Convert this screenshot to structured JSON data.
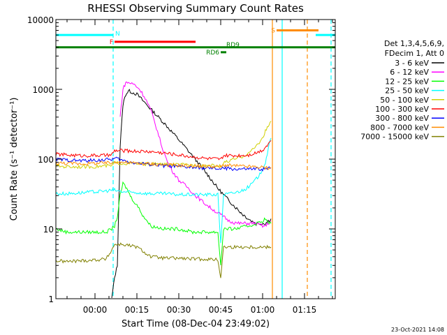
{
  "chart_data": {
    "type": "line",
    "title": "RHESSI Observing Summary Count Rates",
    "xlabel": "Start Time (08-Dec-04 23:49:02)",
    "ylabel": "Count Rate (s⁻¹ detector⁻¹)",
    "yscale": "log",
    "xlim_min": [
      -14,
      86
    ],
    "ylim": [
      1,
      10000
    ],
    "x_ticks": [
      {
        "v": 0,
        "label": "00:00"
      },
      {
        "v": 15,
        "label": "00:15"
      },
      {
        "v": 30,
        "label": "00:30"
      },
      {
        "v": 45,
        "label": "00:45"
      },
      {
        "v": 60,
        "label": "01:00"
      },
      {
        "v": 75,
        "label": "01:15"
      }
    ],
    "y_ticks": [
      {
        "v": 1,
        "label": "1"
      },
      {
        "v": 10,
        "label": "10"
      },
      {
        "v": 100,
        "label": "100"
      },
      {
        "v": 1000,
        "label": "1000"
      },
      {
        "v": 10000,
        "label": "10000"
      }
    ],
    "legend_header": [
      "Det 1,3,4,5,6,9,",
      "FDecim 1, Att 0"
    ],
    "legend_position": "right",
    "series": [
      {
        "name": "3 - 6 keV",
        "color": "#000000",
        "x": [
          -14,
          -10,
          -5,
          0,
          4,
          6,
          7,
          8,
          9,
          10,
          11,
          12,
          13,
          15,
          17,
          20,
          25,
          30,
          35,
          40,
          44,
          47,
          50,
          53,
          56,
          58,
          60,
          61,
          62,
          63
        ],
        "y": [
          null,
          null,
          null,
          null,
          null,
          1,
          2,
          3,
          150,
          600,
          850,
          950,
          920,
          850,
          700,
          520,
          320,
          190,
          110,
          62,
          38,
          28,
          21,
          16,
          13,
          12,
          12,
          12,
          13,
          14
        ]
      },
      {
        "name": "6 - 12 keV",
        "color": "#ff00ff",
        "x": [
          -14,
          -10,
          -5,
          0,
          4,
          6,
          7,
          8,
          9,
          10,
          11,
          12,
          14,
          16,
          18,
          20,
          22,
          24,
          26,
          28,
          30,
          33,
          36,
          40,
          43,
          45,
          48,
          51,
          54,
          57,
          60,
          61,
          62,
          63
        ],
        "y": [
          null,
          null,
          null,
          null,
          null,
          null,
          null,
          null,
          400,
          1000,
          1250,
          1250,
          1180,
          1000,
          750,
          500,
          280,
          150,
          90,
          65,
          50,
          40,
          30,
          22,
          18,
          16,
          13,
          12,
          12,
          12,
          11,
          11,
          12,
          13
        ]
      },
      {
        "name": "12 - 25 keV",
        "color": "#00ff00",
        "x": [
          -14,
          -10,
          -5,
          0,
          4,
          6,
          7,
          8,
          9,
          10,
          11,
          12,
          13,
          15,
          17,
          20,
          25,
          30,
          35,
          40,
          44,
          45,
          46,
          50,
          55,
          58,
          60,
          61,
          62,
          63
        ],
        "y": [
          10,
          9,
          9,
          9,
          9,
          10,
          11,
          15,
          30,
          45,
          40,
          34,
          28,
          22,
          16,
          11,
          10,
          10,
          9,
          9,
          9,
          3,
          10,
          10,
          11,
          12,
          13,
          14,
          12,
          12
        ]
      },
      {
        "name": "25 - 50 keV",
        "color": "#00ffff",
        "x": [
          -14,
          -10,
          -5,
          0,
          4,
          6,
          7,
          8,
          10,
          15,
          20,
          25,
          30,
          35,
          40,
          44,
          45,
          46,
          50,
          53,
          55,
          57,
          59,
          61,
          62,
          63
        ],
        "y": [
          32,
          32,
          33,
          34,
          35,
          36,
          36,
          35,
          34,
          33,
          32,
          32,
          31,
          31,
          31,
          31,
          6,
          31,
          33,
          36,
          40,
          48,
          60,
          90,
          140,
          200
        ]
      },
      {
        "name": "50 - 100 keV",
        "color": "#d0d000",
        "x": [
          -14,
          -10,
          -5,
          0,
          4,
          6,
          7,
          8,
          10,
          15,
          20,
          25,
          30,
          35,
          40,
          44,
          45,
          46,
          50,
          53,
          56,
          58,
          60,
          61,
          62,
          63
        ],
        "y": [
          80,
          78,
          78,
          78,
          80,
          80,
          88,
          88,
          87,
          86,
          85,
          84,
          83,
          82,
          81,
          80,
          78,
          88,
          100,
          110,
          130,
          160,
          200,
          250,
          300,
          350
        ]
      },
      {
        "name": "100 - 300 keV",
        "color": "#ff0000",
        "x": [
          -14,
          -10,
          -5,
          0,
          4,
          6,
          7,
          8,
          10,
          15,
          20,
          25,
          30,
          35,
          40,
          44,
          45,
          46,
          50,
          55,
          58,
          60,
          61,
          62,
          63
        ],
        "y": [
          118,
          115,
          112,
          113,
          113,
          115,
          132,
          132,
          132,
          130,
          128,
          122,
          115,
          108,
          102,
          100,
          98,
          112,
          112,
          115,
          125,
          135,
          150,
          165,
          185
        ]
      },
      {
        "name": "300 - 800 keV",
        "color": "#0000ff",
        "x": [
          -14,
          -10,
          -5,
          0,
          4,
          6,
          7,
          8,
          10,
          15,
          20,
          25,
          30,
          35,
          40,
          44,
          45,
          46,
          50,
          55,
          58,
          60,
          61,
          62,
          63
        ],
        "y": [
          100,
          97,
          95,
          96,
          98,
          100,
          102,
          102,
          95,
          88,
          84,
          80,
          78,
          76,
          74,
          73,
          72,
          74,
          72,
          72,
          72,
          72,
          72,
          73,
          75
        ]
      },
      {
        "name": "800 - 7000 keV",
        "color": "#ff8c00",
        "x": [
          -14,
          -10,
          -5,
          0,
          4,
          6,
          7,
          8,
          10,
          15,
          20,
          25,
          30,
          35,
          40,
          44,
          45,
          46,
          50,
          55,
          58,
          60,
          61,
          62,
          63
        ],
        "y": [
          88,
          87,
          86,
          87,
          88,
          88,
          92,
          92,
          90,
          87,
          85,
          83,
          81,
          80,
          79,
          78,
          77,
          82,
          80,
          78,
          77,
          76,
          75,
          75,
          76
        ]
      },
      {
        "name": "7000 - 15000 keV",
        "color": "#808000",
        "x": [
          -14,
          -10,
          -5,
          0,
          4,
          6,
          7,
          8,
          10,
          15,
          20,
          25,
          30,
          35,
          40,
          44,
          45,
          46,
          50,
          55,
          58,
          60,
          61,
          62,
          63
        ],
        "y": [
          3.5,
          3.4,
          3.5,
          3.6,
          3.7,
          5,
          6,
          6,
          6,
          5.5,
          4,
          3.8,
          3.8,
          3.7,
          3.7,
          3.6,
          2,
          5.5,
          5.5,
          5.5,
          5.5,
          5.5,
          5.5,
          5.5,
          5.5
        ]
      }
    ],
    "status_bars": [
      {
        "label": "N",
        "color": "#00ffff",
        "x": [
          -14,
          6.5
        ],
        "y": 6000
      },
      {
        "label": "N",
        "color": "#00ffff",
        "x": [
          79,
          86
        ],
        "y": 6000
      },
      {
        "label": "F",
        "color": "#ff0000",
        "x": [
          7,
          36
        ],
        "y": 4800
      },
      {
        "label": "S",
        "color": "#ff8c00",
        "x": [
          65,
          80
        ],
        "y": 7000
      },
      {
        "label": "RD9",
        "color": "#008000",
        "x": [
          -14,
          86
        ],
        "y": 4000
      },
      {
        "label": "RD6",
        "color": "#008000",
        "x": [
          45,
          47
        ],
        "y": 3400
      }
    ],
    "vertical_lines": [
      {
        "x": 6.5,
        "color": "#00ffff",
        "style": "dashed"
      },
      {
        "x": 84.5,
        "color": "#00ffff",
        "style": "dashed"
      },
      {
        "x": 76,
        "color": "#ff8c00",
        "style": "dashed"
      },
      {
        "x": 63.5,
        "color": "#ff8c00",
        "style": "solid"
      },
      {
        "x": 67,
        "color": "#00ffff",
        "style": "solid"
      }
    ],
    "footer": "23-Oct-2021 14:08"
  }
}
